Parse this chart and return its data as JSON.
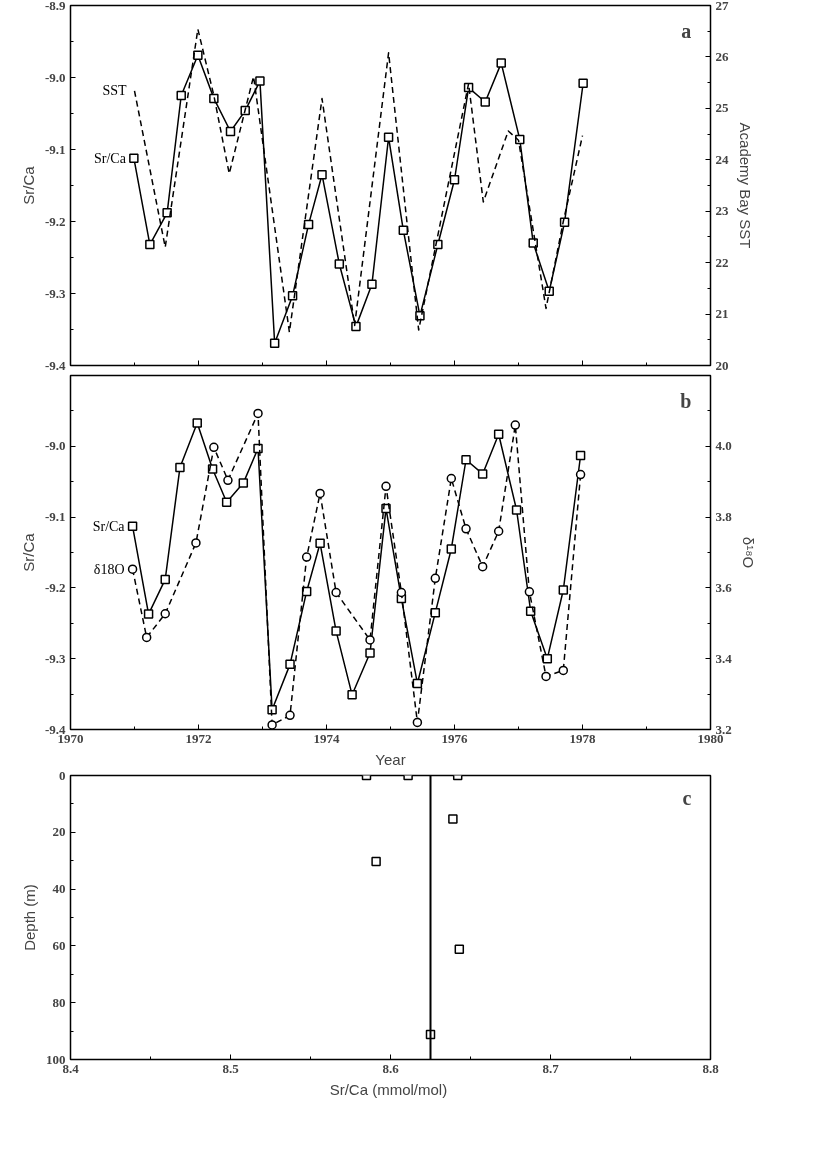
{
  "chart_data": [
    {
      "type": "line",
      "annotations": [
        "a"
      ],
      "ylabel": "Sr/Ca",
      "y2label": "Academy Bay SST",
      "tick_labels": "y",
      "xlim": [
        1970,
        1980
      ],
      "xticks": [
        1970,
        {
          "value": 1971,
          "label": null
        },
        1972,
        {
          "value": 1973,
          "label": null
        },
        1974,
        {
          "value": 1975,
          "label": null
        },
        1976,
        {
          "value": 1977,
          "label": null
        },
        1978,
        {
          "value": 1979,
          "label": null
        },
        1980
      ],
      "ylim": [
        -9.4,
        -8.9
      ],
      "yticks": [
        -8.9,
        {
          "value": -8.95,
          "label": null
        },
        {
          "value": -9.0,
          "label": "-9.0"
        },
        {
          "value": -9.05,
          "label": null
        },
        -9.1,
        {
          "value": -9.15,
          "label": null
        },
        -9.2,
        {
          "value": -9.25,
          "label": null
        },
        -9.3,
        {
          "value": -9.35,
          "label": null
        },
        -9.4
      ],
      "y2lim": [
        20,
        27
      ],
      "y2ticks": [
        20,
        {
          "value": 20.5,
          "label": null
        },
        21,
        {
          "value": 21.5,
          "label": null
        },
        22,
        {
          "value": 22.5,
          "label": null
        },
        23,
        {
          "value": 23.5,
          "label": null
        },
        24,
        {
          "value": 24.5,
          "label": null
        },
        25,
        {
          "value": 25.5,
          "label": null
        },
        26,
        {
          "value": 26.5,
          "label": null
        },
        27
      ],
      "grid": false,
      "series": [
        {
          "name": "Sr/Ca",
          "color": "#000000",
          "marker": "square",
          "line_style": "solid",
          "x": [
            1970.99,
            1971.24,
            1971.51,
            1971.73,
            1971.99,
            1972.24,
            1972.5,
            1972.73,
            1972.96,
            1973.19,
            1973.47,
            1973.72,
            1973.93,
            1974.2,
            1974.46,
            1974.71,
            1974.97,
            1975.2,
            1975.46,
            1975.74,
            1976.0,
            1976.22,
            1976.48,
            1976.73,
            1977.02,
            1977.23,
            1977.48,
            1977.72,
            1978.01
          ],
          "values": [
            -9.112,
            -9.232,
            -9.188,
            -9.025,
            -8.969,
            -9.029,
            -9.075,
            -9.046,
            -9.005,
            -9.369,
            -9.303,
            -9.204,
            -9.135,
            -9.259,
            -9.346,
            -9.287,
            -9.083,
            -9.212,
            -9.331,
            -9.232,
            -9.142,
            -9.014,
            -9.034,
            -8.98,
            -9.086,
            -9.23,
            -9.297,
            -9.201,
            -9.008
          ]
        },
        {
          "name": "SST",
          "color": "#000000",
          "marker": "none",
          "line_style": "dashed",
          "axis": "y2",
          "x": [
            1971.0,
            1971.48,
            1971.99,
            1972.24,
            1972.48,
            1972.86,
            1973.42,
            1973.93,
            1974.44,
            1974.97,
            1975.44,
            1976.22,
            1976.45,
            1976.84,
            1977.0,
            1977.43,
            1977.7,
            1978.0
          ],
          "values": [
            25.34,
            22.3,
            26.54,
            25.25,
            23.73,
            25.62,
            20.65,
            25.19,
            20.78,
            26.08,
            20.69,
            25.48,
            23.18,
            24.56,
            24.38,
            21.11,
            22.8,
            24.47
          ]
        }
      ]
    },
    {
      "type": "line",
      "annotations": [
        "b"
      ],
      "xlabel": "Year",
      "ylabel": "Sr/Ca",
      "y2label": "δ¹⁸O",
      "xlim": [
        1970,
        1980
      ],
      "xticks": [
        1970,
        {
          "value": 1971,
          "label": null
        },
        1972,
        {
          "value": 1973,
          "label": null
        },
        1974,
        {
          "value": 1975,
          "label": null
        },
        1976,
        {
          "value": 1977,
          "label": null
        },
        1978,
        {
          "value": 1979,
          "label": null
        },
        1980
      ],
      "ylim": [
        -9.4,
        -8.9
      ],
      "yticks": [
        {
          "value": -8.95,
          "label": null
        },
        {
          "value": -9.0,
          "label": "-9.0"
        },
        {
          "value": -9.05,
          "label": null
        },
        -9.1,
        {
          "value": -9.15,
          "label": null
        },
        -9.2,
        {
          "value": -9.25,
          "label": null
        },
        -9.3,
        {
          "value": -9.35,
          "label": null
        },
        -9.4
      ],
      "y2lim": [
        3.2,
        4.2
      ],
      "y2ticks": [
        3.2,
        {
          "value": 3.3,
          "label": null
        },
        3.4,
        {
          "value": 3.5,
          "label": null
        },
        3.6,
        {
          "value": 3.7,
          "label": null
        },
        3.8,
        {
          "value": 3.9,
          "label": null
        },
        {
          "value": 4.0,
          "label": "4.0"
        },
        {
          "value": 4.1,
          "label": null
        }
      ],
      "grid": false,
      "series": [
        {
          "name": "Sr/Ca",
          "color": "#000000",
          "marker": "square",
          "line_style": "solid",
          "x": [
            1970.97,
            1971.22,
            1971.48,
            1971.71,
            1971.98,
            1972.22,
            1972.44,
            1972.7,
            1972.93,
            1973.15,
            1973.43,
            1973.69,
            1973.9,
            1974.15,
            1974.4,
            1974.68,
            1974.93,
            1975.17,
            1975.42,
            1975.7,
            1975.95,
            1976.18,
            1976.44,
            1976.69,
            1976.97,
            1977.19,
            1977.45,
            1977.7,
            1977.97
          ],
          "values": [
            -9.113,
            -9.237,
            -9.188,
            -9.03,
            -8.967,
            -9.032,
            -9.079,
            -9.052,
            -9.003,
            -9.372,
            -9.308,
            -9.205,
            -9.137,
            -9.261,
            -9.351,
            -9.292,
            -9.088,
            -9.215,
            -9.335,
            -9.235,
            -9.145,
            -9.019,
            -9.039,
            -8.983,
            -9.09,
            -9.233,
            -9.3,
            -9.203,
            -9.013
          ]
        },
        {
          "name": "δ18O",
          "color": "#000000",
          "marker": "circle",
          "line_style": "dashed",
          "axis": "y2",
          "x": [
            1970.97,
            1971.19,
            1971.48,
            1971.96,
            1972.24,
            1972.46,
            1972.93,
            1973.15,
            1973.43,
            1973.69,
            1973.9,
            1974.15,
            1974.68,
            1974.93,
            1975.17,
            1975.42,
            1975.7,
            1975.95,
            1976.18,
            1976.44,
            1976.69,
            1976.95,
            1977.17,
            1977.43,
            1977.7,
            1977.97
          ],
          "values": [
            3.653,
            3.46,
            3.527,
            3.727,
            3.997,
            3.904,
            4.093,
            3.213,
            3.24,
            3.687,
            3.867,
            3.587,
            3.453,
            3.887,
            3.587,
            3.22,
            3.627,
            3.909,
            3.767,
            3.66,
            3.76,
            4.06,
            3.589,
            3.35,
            3.367,
            3.92
          ]
        }
      ]
    },
    {
      "type": "scatter",
      "annotations": [
        "c"
      ],
      "xlabel": "Sr/Ca  (mmol/mol)",
      "ylabel": "Depth (m)",
      "xlim": [
        8.4,
        8.8
      ],
      "xticks": [
        8.4,
        {
          "value": 8.45,
          "label": null
        },
        8.5,
        {
          "value": 8.55,
          "label": null
        },
        8.6,
        {
          "value": 8.65,
          "label": null
        },
        8.7,
        {
          "value": 8.75,
          "label": null
        },
        8.8
      ],
      "ylim": [
        100,
        0
      ],
      "yticks": [
        0,
        {
          "value": 10,
          "label": null
        },
        20,
        {
          "value": 30,
          "label": null
        },
        40,
        {
          "value": 50,
          "label": null
        },
        60,
        {
          "value": 70,
          "label": null
        },
        80,
        {
          "value": 90,
          "label": null
        },
        100
      ],
      "grid": false,
      "marker": "square",
      "ref_lines": [
        {
          "axis": "x",
          "value": 8.625,
          "color": "#000000",
          "line_style": "solid"
        }
      ],
      "series": [
        {
          "color": "#000000",
          "x": [
            8.642,
            8.611,
            8.585,
            8.639,
            8.591,
            8.643,
            8.625
          ],
          "values": [
            0,
            0,
            0,
            15.3,
            30.3,
            61.2,
            91.2
          ]
        }
      ]
    }
  ]
}
